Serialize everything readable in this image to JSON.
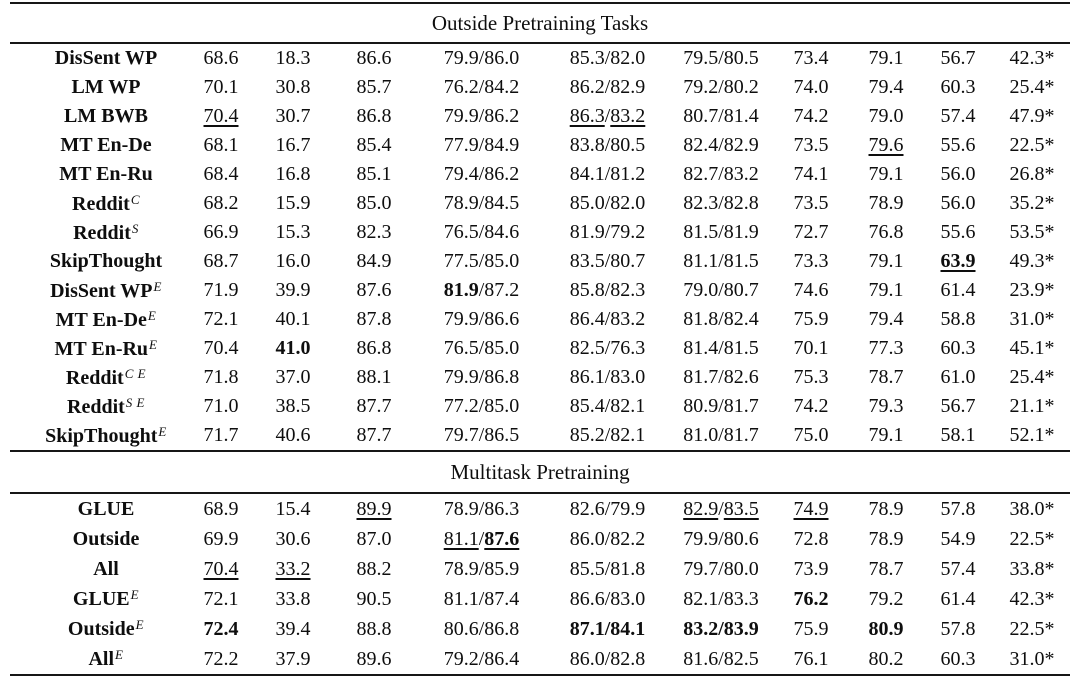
{
  "table": {
    "sections": [
      {
        "header": "Outside Pretraining Tasks",
        "rows": [
          {
            "label": "DisSent WP",
            "sup": "",
            "cells": [
              "68.6",
              "18.3",
              "86.6",
              "79.9/86.0",
              "85.3/82.0",
              "79.5/80.5",
              "73.4",
              "79.1",
              "56.7",
              "42.3*"
            ]
          },
          {
            "label": "LM WP",
            "sup": "",
            "cells": [
              "70.1",
              "30.8",
              "85.7",
              "76.2/84.2",
              "86.2/82.9",
              "79.2/80.2",
              "74.0",
              "79.4",
              "60.3",
              "25.4*"
            ]
          },
          {
            "label": "LM BWB",
            "sup": "",
            "cells": [
              "__70.4__",
              "30.7",
              "86.8",
              "79.9/86.2",
              "__86.3__/__83.2__",
              "80.7/81.4",
              "74.2",
              "79.0",
              "57.4",
              "47.9*"
            ]
          },
          {
            "label": "MT En-De",
            "sup": "",
            "cells": [
              "68.1",
              "16.7",
              "85.4",
              "77.9/84.9",
              "83.8/80.5",
              "82.4/82.9",
              "73.5",
              "__79.6__",
              "55.6",
              "22.5*"
            ]
          },
          {
            "label": "MT En-Ru",
            "sup": "",
            "cells": [
              "68.4",
              "16.8",
              "85.1",
              "79.4/86.2",
              "84.1/81.2",
              "82.7/83.2",
              "74.1",
              "79.1",
              "56.0",
              "26.8*"
            ]
          },
          {
            "label": "Reddit",
            "sup": "C",
            "cells": [
              "68.2",
              "15.9",
              "85.0",
              "78.9/84.5",
              "85.0/82.0",
              "82.3/82.8",
              "73.5",
              "78.9",
              "56.0",
              "35.2*"
            ]
          },
          {
            "label": "Reddit",
            "sup": "S",
            "cells": [
              "66.9",
              "15.3",
              "82.3",
              "76.5/84.6",
              "81.9/79.2",
              "81.5/81.9",
              "72.7",
              "76.8",
              "55.6",
              "53.5*"
            ]
          },
          {
            "label": "SkipThought",
            "sup": "",
            "cells": [
              "68.7",
              "16.0",
              "84.9",
              "77.5/85.0",
              "83.5/80.7",
              "81.1/81.5",
              "73.3",
              "79.1",
              "**__63.9__**",
              "49.3*"
            ]
          },
          {
            "label": "DisSent WP",
            "sup": "E",
            "cells": [
              "71.9",
              "39.9",
              "87.6",
              "**81.9**/87.2",
              "85.8/82.3",
              "79.0/80.7",
              "74.6",
              "79.1",
              "61.4",
              "23.9*"
            ]
          },
          {
            "label": "MT En-De",
            "sup": "E",
            "cells": [
              "72.1",
              "40.1",
              "87.8",
              "79.9/86.6",
              "86.4/83.2",
              "81.8/82.4",
              "75.9",
              "79.4",
              "58.8",
              "31.0*"
            ]
          },
          {
            "label": "MT En-Ru",
            "sup": "E",
            "cells": [
              "70.4",
              "**41.0**",
              "86.8",
              "76.5/85.0",
              "82.5/76.3",
              "81.4/81.5",
              "70.1",
              "77.3",
              "60.3",
              "45.1*"
            ]
          },
          {
            "label": "Reddit",
            "sup": "C E",
            "cells": [
              "71.8",
              "37.0",
              "88.1",
              "79.9/86.8",
              "86.1/83.0",
              "81.7/82.6",
              "75.3",
              "78.7",
              "61.0",
              "25.4*"
            ]
          },
          {
            "label": "Reddit",
            "sup": "S E",
            "cells": [
              "71.0",
              "38.5",
              "87.7",
              "77.2/85.0",
              "85.4/82.1",
              "80.9/81.7",
              "74.2",
              "79.3",
              "56.7",
              "21.1*"
            ]
          },
          {
            "label": "SkipThought",
            "sup": "E",
            "cells": [
              "71.7",
              "40.6",
              "87.7",
              "79.7/86.5",
              "85.2/82.1",
              "81.0/81.7",
              "75.0",
              "79.1",
              "58.1",
              "52.1*"
            ]
          }
        ]
      },
      {
        "header": "Multitask Pretraining",
        "rows": [
          {
            "label": "GLUE",
            "sup": "",
            "cells": [
              "68.9",
              "15.4",
              "__89.9__",
              "78.9/86.3",
              "82.6/79.9",
              "__82.9__/__83.5__",
              "__74.9__",
              "78.9",
              "57.8",
              "38.0*"
            ]
          },
          {
            "label": "Outside",
            "sup": "",
            "cells": [
              "69.9",
              "30.6",
              "87.0",
              "__81.1__/**__87.6__**",
              "86.0/82.2",
              "79.9/80.6",
              "72.8",
              "78.9",
              "54.9",
              "22.5*"
            ]
          },
          {
            "label": "All",
            "sup": "",
            "cells": [
              "__70.4__",
              "__33.2__",
              "88.2",
              "78.9/85.9",
              "85.5/81.8",
              "79.7/80.0",
              "73.9",
              "78.7",
              "57.4",
              "33.8*"
            ]
          },
          {
            "label": "GLUE",
            "sup": "E",
            "cells": [
              "72.1",
              "33.8",
              "90.5",
              "81.1/87.4",
              "86.6/83.0",
              "82.1/83.3",
              "**76.2**",
              "79.2",
              "61.4",
              "42.3*"
            ]
          },
          {
            "label": "Outside",
            "sup": "E",
            "cells": [
              "**72.4**",
              "39.4",
              "88.8",
              "80.6/86.8",
              "**87.1/84.1**",
              "**83.2/83.9**",
              "75.9",
              "**80.9**",
              "57.8",
              "22.5*"
            ]
          },
          {
            "label": "All",
            "sup": "E",
            "cells": [
              "72.2",
              "37.9",
              "89.6",
              "79.2/86.4",
              "86.0/82.8",
              "81.6/82.5",
              "76.1",
              "80.2",
              "60.3",
              "31.0*"
            ]
          }
        ]
      }
    ]
  }
}
